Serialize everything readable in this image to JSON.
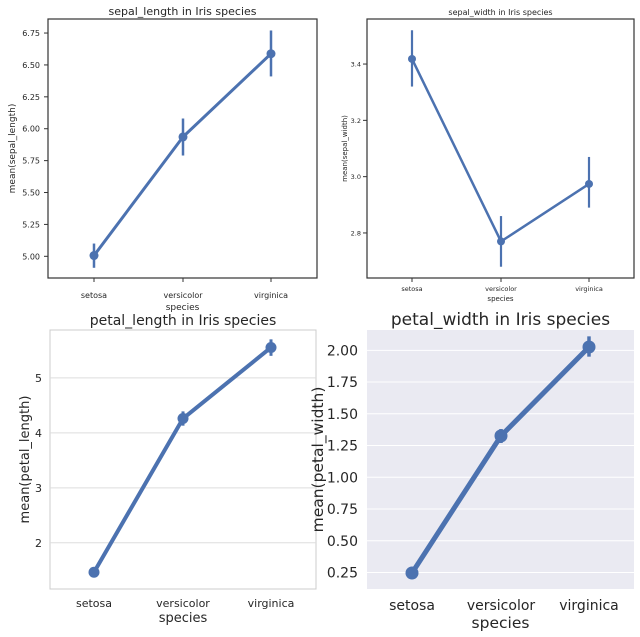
{
  "chart_data": [
    {
      "type": "line",
      "title": "sepal_length in Iris species",
      "xlabel": "species",
      "ylabel": "mean(sepal_length)",
      "categories": [
        "setosa",
        "versicolor",
        "virginica"
      ],
      "values": [
        5.006,
        5.936,
        6.588
      ],
      "ci_low": [
        4.91,
        5.79,
        6.41
      ],
      "ci_high": [
        5.1,
        6.08,
        6.77
      ],
      "ylim": [
        4.83,
        6.86
      ],
      "yticks": [
        5.0,
        5.25,
        5.5,
        5.75,
        6.0,
        6.25,
        6.5,
        6.75
      ],
      "ytick_labels": [
        "5.00",
        "5.25",
        "5.50",
        "5.75",
        "6.00",
        "6.25",
        "6.50",
        "6.75"
      ],
      "grid": false,
      "background": "#ffffff",
      "color": "#4c72b0"
    },
    {
      "type": "line",
      "title": "sepal_width in Iris species",
      "xlabel": "species",
      "ylabel": "mean(sepal_width)",
      "categories": [
        "setosa",
        "versicolor",
        "virginica"
      ],
      "values": [
        3.418,
        2.77,
        2.974
      ],
      "ci_low": [
        3.32,
        2.68,
        2.89
      ],
      "ci_high": [
        3.52,
        2.86,
        3.07
      ],
      "ylim": [
        2.64,
        3.56
      ],
      "yticks": [
        2.8,
        3.0,
        3.2,
        3.4
      ],
      "ytick_labels": [
        "2.8",
        "3.0",
        "3.2",
        "3.4"
      ],
      "grid": false,
      "background": "#ffffff",
      "color": "#4c72b0"
    },
    {
      "type": "line",
      "title": "petal_length in Iris species",
      "xlabel": "species",
      "ylabel": "mean(petal_length)",
      "categories": [
        "setosa",
        "versicolor",
        "virginica"
      ],
      "values": [
        1.464,
        4.26,
        5.552
      ],
      "ci_low": [
        1.42,
        4.13,
        5.4
      ],
      "ci_high": [
        1.51,
        4.39,
        5.7
      ],
      "ylim": [
        1.16,
        5.87
      ],
      "yticks": [
        2,
        3,
        4,
        5
      ],
      "ytick_labels": [
        "2",
        "3",
        "4",
        "5"
      ],
      "grid": true,
      "background": "#ffffff",
      "color": "#4c72b0"
    },
    {
      "type": "line",
      "title": "petal_width in Iris species",
      "xlabel": "species",
      "ylabel": "mean(petal_width)",
      "categories": [
        "setosa",
        "versicolor",
        "virginica"
      ],
      "values": [
        0.246,
        1.326,
        2.026
      ],
      "ci_low": [
        0.22,
        1.27,
        1.95
      ],
      "ci_high": [
        0.28,
        1.38,
        2.11
      ],
      "ylim": [
        0.12,
        2.16
      ],
      "yticks": [
        0.25,
        0.5,
        0.75,
        1.0,
        1.25,
        1.5,
        1.75,
        2.0
      ],
      "ytick_labels": [
        "0.25",
        "0.50",
        "0.75",
        "1.00",
        "1.25",
        "1.50",
        "1.75",
        "2.00"
      ],
      "grid": true,
      "background": "#eaeaf2",
      "color": "#4c72b0"
    }
  ]
}
